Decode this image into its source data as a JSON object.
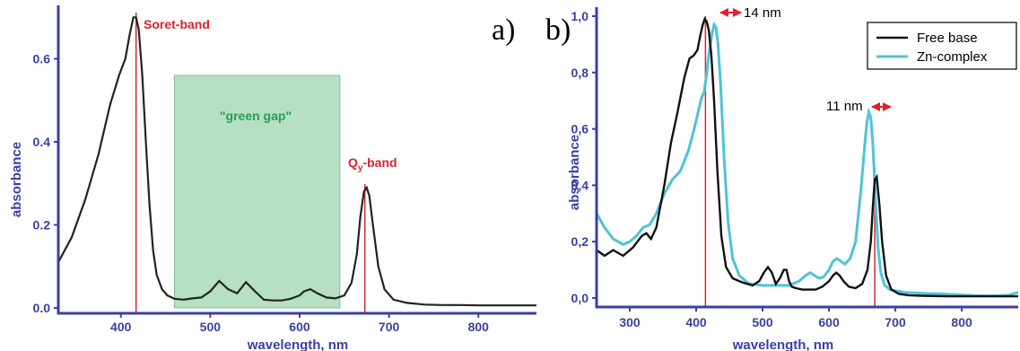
{
  "chart_data": [
    {
      "type": "line",
      "panel_label": "a)",
      "xlabel": "wavelength, nm",
      "ylabel": "absorbance",
      "xlim": [
        330,
        865
      ],
      "ylim": [
        0,
        0.72
      ],
      "xticks": [
        400,
        500,
        600,
        700,
        800
      ],
      "yticks": [
        0.0,
        0.2,
        0.4,
        0.6
      ],
      "ytick_labels": [
        "0.0",
        "0.2",
        "0.4",
        "0.6"
      ],
      "grid": false,
      "color_curve": "#222222",
      "color_vline": "#d42a2a",
      "color_gap": "#9dd4b0",
      "series": [
        {
          "x": [
            330,
            345,
            360,
            375,
            388,
            398,
            405,
            410,
            414,
            417,
            420,
            424,
            428,
            432,
            436,
            440,
            446,
            452,
            460,
            470,
            480,
            490,
            500,
            510,
            520,
            530,
            540,
            550,
            560,
            570,
            580,
            590,
            600,
            605,
            612,
            620,
            630,
            640,
            650,
            658,
            664,
            668,
            672,
            675,
            678,
            682,
            688,
            695,
            705,
            720,
            740,
            760,
            780,
            800,
            820,
            840,
            865
          ],
          "y": [
            0.11,
            0.17,
            0.26,
            0.37,
            0.49,
            0.56,
            0.6,
            0.66,
            0.7,
            0.7,
            0.67,
            0.56,
            0.4,
            0.25,
            0.14,
            0.08,
            0.045,
            0.03,
            0.022,
            0.02,
            0.023,
            0.025,
            0.04,
            0.065,
            0.045,
            0.035,
            0.062,
            0.04,
            0.02,
            0.018,
            0.018,
            0.022,
            0.03,
            0.04,
            0.045,
            0.035,
            0.025,
            0.023,
            0.03,
            0.06,
            0.13,
            0.22,
            0.28,
            0.29,
            0.27,
            0.2,
            0.1,
            0.045,
            0.02,
            0.012,
            0.008,
            0.007,
            0.007,
            0.006,
            0.006,
            0.006,
            0.006
          ]
        }
      ],
      "vlines": [
        417,
        673
      ],
      "shaded_region": {
        "x": [
          460,
          645
        ],
        "y": [
          0,
          0.56
        ]
      },
      "annotations": {
        "soret": "Soret-band",
        "gap": "\"green gap\"",
        "qy_main": "Q",
        "qy_sub": "y",
        "qy_tail": "-band"
      }
    },
    {
      "type": "line",
      "panel_label": "b)",
      "xlabel": "wavelength, nm",
      "ylabel": "absorbance",
      "xlim": [
        250,
        885
      ],
      "ylim": [
        -0.03,
        1.02
      ],
      "xticks": [
        300,
        400,
        500,
        600,
        700,
        800
      ],
      "yticks": [
        0.0,
        0.2,
        0.4,
        0.6,
        0.8,
        1.0
      ],
      "ytick_labels": [
        "0,0",
        "0,2",
        "0,4",
        "0,6",
        "0,8",
        "1,0"
      ],
      "grid": false,
      "color_vline": "#d42a2a",
      "legend_position": "top-right",
      "series": [
        {
          "name": "Free base",
          "color": "#111111",
          "x": [
            250,
            262,
            275,
            290,
            305,
            318,
            325,
            332,
            340,
            352,
            362,
            372,
            382,
            390,
            396,
            402,
            406,
            410,
            413,
            416,
            419,
            423,
            427,
            432,
            438,
            445,
            455,
            470,
            485,
            495,
            502,
            508,
            514,
            520,
            526,
            532,
            536,
            540,
            544,
            550,
            560,
            570,
            580,
            590,
            600,
            606,
            611,
            616,
            622,
            630,
            640,
            650,
            658,
            663,
            666,
            669,
            672,
            676,
            680,
            686,
            694,
            705,
            720,
            740,
            760,
            780,
            800,
            820,
            840,
            860,
            885
          ],
          "y": [
            0.17,
            0.15,
            0.17,
            0.15,
            0.18,
            0.22,
            0.23,
            0.21,
            0.25,
            0.4,
            0.55,
            0.66,
            0.78,
            0.85,
            0.86,
            0.88,
            0.93,
            0.97,
            0.99,
            0.98,
            0.95,
            0.86,
            0.7,
            0.45,
            0.22,
            0.11,
            0.07,
            0.055,
            0.045,
            0.06,
            0.09,
            0.11,
            0.09,
            0.05,
            0.07,
            0.1,
            0.1,
            0.06,
            0.04,
            0.035,
            0.03,
            0.03,
            0.03,
            0.04,
            0.06,
            0.08,
            0.09,
            0.08,
            0.06,
            0.04,
            0.035,
            0.05,
            0.1,
            0.2,
            0.32,
            0.42,
            0.43,
            0.33,
            0.2,
            0.08,
            0.03,
            0.015,
            0.01,
            0.008,
            0.007,
            0.006,
            0.006,
            0.006,
            0.006,
            0.006,
            0.006
          ]
        },
        {
          "name": "Zn-complex",
          "color": "#4fc3d8",
          "x": [
            250,
            262,
            275,
            290,
            300,
            310,
            320,
            330,
            340,
            352,
            364,
            376,
            388,
            397,
            404,
            408,
            412,
            416,
            420,
            424,
            427,
            430,
            433,
            437,
            442,
            448,
            455,
            465,
            480,
            500,
            520,
            540,
            555,
            565,
            572,
            578,
            585,
            592,
            600,
            606,
            612,
            618,
            624,
            632,
            640,
            648,
            653,
            657,
            660,
            663,
            666,
            670,
            674,
            678,
            684,
            692,
            702,
            715,
            730,
            750,
            770,
            790,
            810,
            830,
            850,
            870,
            885
          ],
          "y": [
            0.3,
            0.25,
            0.21,
            0.19,
            0.2,
            0.22,
            0.25,
            0.26,
            0.3,
            0.37,
            0.42,
            0.45,
            0.52,
            0.6,
            0.67,
            0.71,
            0.73,
            0.8,
            0.88,
            0.94,
            0.97,
            0.96,
            0.9,
            0.75,
            0.5,
            0.27,
            0.14,
            0.08,
            0.05,
            0.045,
            0.045,
            0.045,
            0.06,
            0.08,
            0.09,
            0.08,
            0.07,
            0.075,
            0.1,
            0.13,
            0.14,
            0.13,
            0.12,
            0.14,
            0.2,
            0.38,
            0.52,
            0.62,
            0.66,
            0.64,
            0.55,
            0.35,
            0.18,
            0.09,
            0.045,
            0.03,
            0.025,
            0.02,
            0.018,
            0.016,
            0.015,
            0.012,
            0.01,
            0.008,
            0.008,
            0.01,
            0.02
          ]
        }
      ],
      "vlines": [
        414,
        669
      ],
      "annotations": {
        "soret_shift": "14 nm",
        "q_shift": "11 nm"
      }
    }
  ]
}
